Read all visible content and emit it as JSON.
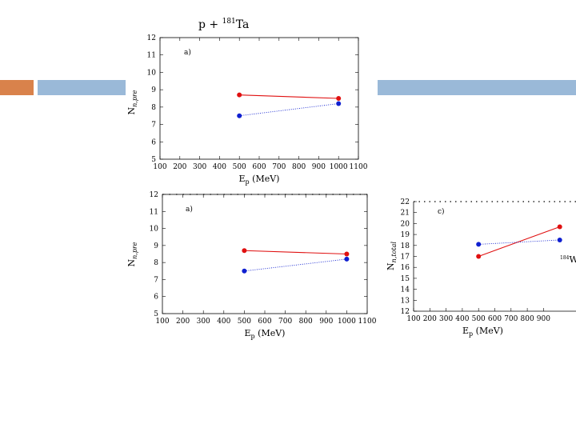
{
  "slide": {
    "accent_colors": {
      "orange": "#d9824b",
      "blue": "#9ab9d8"
    }
  },
  "chart_data": [
    {
      "type": "line",
      "title": "p + 181Ta",
      "title_parts": {
        "prefix": "p + ",
        "sup": "181",
        "suffix": "Ta"
      },
      "panel_label": "a)",
      "xlabel": "E",
      "xlabel_sub": "p",
      "xlabel_unit": " (MeV)",
      "ylabel": "N",
      "ylabel_sub": "n,pre",
      "xlim": [
        100,
        1100
      ],
      "ylim": [
        5,
        12
      ],
      "xticks": [
        100,
        200,
        300,
        400,
        500,
        600,
        700,
        800,
        900,
        1000,
        1100
      ],
      "yticks": [
        5,
        6,
        7,
        8,
        9,
        10,
        11,
        12
      ],
      "series": [
        {
          "color": "#e01010",
          "style": "solid",
          "x": [
            500,
            1000
          ],
          "y": [
            8.7,
            8.5
          ]
        },
        {
          "color": "#1020d0",
          "style": "dotted",
          "x": [
            500,
            1000
          ],
          "y": [
            7.5,
            8.2
          ]
        }
      ]
    },
    {
      "type": "line",
      "panel_label": "a)",
      "xlabel": "E",
      "xlabel_sub": "p",
      "xlabel_unit": " (MeV)",
      "ylabel": "N",
      "ylabel_sub": "n,pre",
      "xlim": [
        100,
        1100
      ],
      "ylim": [
        5,
        12
      ],
      "xticks": [
        100,
        200,
        300,
        400,
        500,
        600,
        700,
        800,
        900,
        1000,
        1100
      ],
      "yticks": [
        5,
        6,
        7,
        8,
        9,
        10,
        11,
        12
      ],
      "series": [
        {
          "color": "#e01010",
          "style": "solid",
          "x": [
            500,
            1000
          ],
          "y": [
            8.7,
            8.5
          ]
        },
        {
          "color": "#1020d0",
          "style": "dotted",
          "x": [
            500,
            1000
          ],
          "y": [
            7.5,
            8.2
          ]
        }
      ]
    },
    {
      "type": "line",
      "panel_label": "c)",
      "xlabel": "E",
      "xlabel_sub": "p",
      "xlabel_unit": " (MeV)",
      "ylabel": "N",
      "ylabel_sub": "n,total",
      "xlim": [
        100,
        1100
      ],
      "ylim": [
        12,
        22
      ],
      "xticks": [
        100,
        200,
        300,
        400,
        500,
        600,
        700,
        800,
        900
      ],
      "yticks": [
        12,
        13,
        14,
        15,
        16,
        17,
        18,
        19,
        20,
        21,
        22
      ],
      "annotation": {
        "sup": "184",
        "text": "W"
      },
      "series": [
        {
          "color": "#e01010",
          "style": "solid",
          "x": [
            500,
            1000
          ],
          "y": [
            17.0,
            19.7
          ]
        },
        {
          "color": "#1020d0",
          "style": "dotted",
          "x": [
            500,
            1000
          ],
          "y": [
            18.1,
            18.5
          ]
        }
      ]
    }
  ]
}
